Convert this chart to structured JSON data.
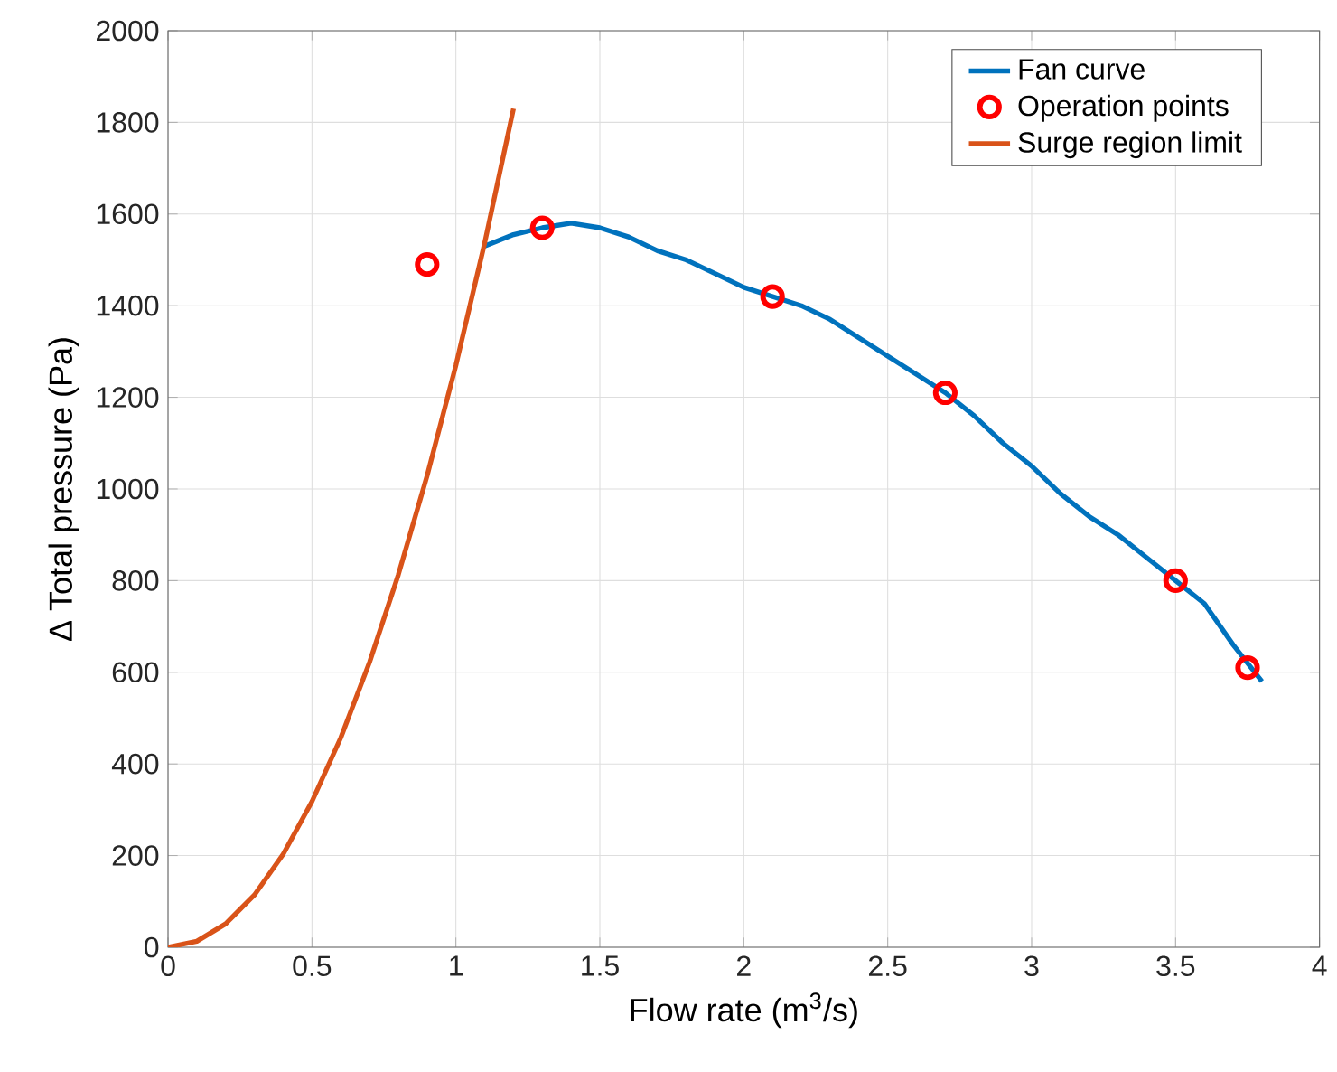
{
  "chart_data": {
    "type": "line",
    "xlabel": "Flow rate (m$^{3}$/s)",
    "ylabel": "Δ Total pressure (Pa)",
    "xlim": [
      0,
      4
    ],
    "ylim": [
      0,
      2000
    ],
    "xticks": [
      0,
      0.5,
      1,
      1.5,
      2,
      2.5,
      3,
      3.5,
      4
    ],
    "yticks": [
      0,
      200,
      400,
      600,
      800,
      1000,
      1200,
      1400,
      1600,
      1800,
      2000
    ],
    "grid": true,
    "legend": "top right",
    "series": [
      {
        "name": "Fan curve",
        "color": "#0072bd",
        "line_style": "solid",
        "x": [
          1.1,
          1.2,
          1.3,
          1.4,
          1.5,
          1.6,
          1.7,
          1.8,
          1.9,
          2.0,
          2.1,
          2.2,
          2.3,
          2.4,
          2.5,
          2.6,
          2.7,
          2.8,
          2.9,
          3.0,
          3.1,
          3.2,
          3.3,
          3.4,
          3.5,
          3.6,
          3.7,
          3.8
        ],
        "values": [
          1530,
          1555,
          1570,
          1580,
          1570,
          1550,
          1520,
          1500,
          1470,
          1440,
          1420,
          1400,
          1370,
          1330,
          1290,
          1250,
          1210,
          1160,
          1100,
          1050,
          990,
          940,
          900,
          850,
          800,
          750,
          660,
          580
        ]
      },
      {
        "name": "Operation points",
        "type": "scatter",
        "marker": "circle",
        "color": "#ff0000",
        "x": [
          0.9,
          1.3,
          2.1,
          2.7,
          3.5,
          3.75
        ],
        "values": [
          1490,
          1570,
          1420,
          1210,
          800,
          610
        ]
      },
      {
        "name": "Surge region limit",
        "color": "#d95319",
        "line_style": "solid",
        "x": [
          0,
          0.1,
          0.2,
          0.3,
          0.4,
          0.5,
          0.6,
          0.7,
          0.8,
          0.9,
          1.0,
          1.1,
          1.2
        ],
        "values": [
          0,
          13,
          51,
          114,
          203,
          318,
          457,
          622,
          813,
          1029,
          1270,
          1537,
          1830
        ]
      }
    ]
  }
}
